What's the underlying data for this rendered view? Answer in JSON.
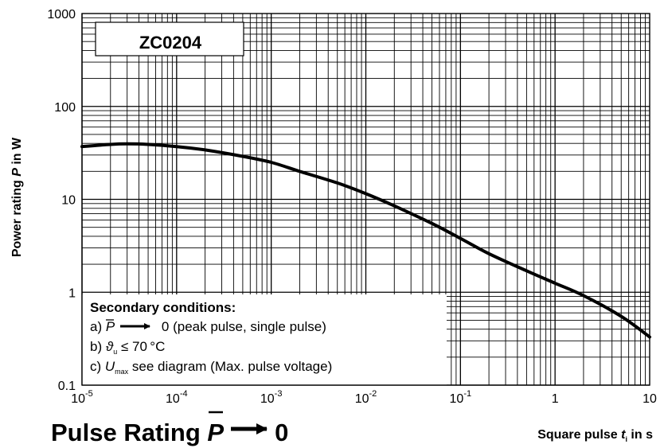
{
  "chart_data": {
    "type": "line",
    "title": "Pulse Rating P̅ → 0",
    "title_parts": {
      "lead": "Pulse Rating ",
      "symbol": "P",
      "tail": "0"
    },
    "label_box": "ZC0204",
    "ylabel": "Power rating P in W",
    "ylabel_parts": {
      "lead": "Power rating ",
      "symbol": "P",
      "tail": " in W"
    },
    "xlabel": "Square pulse tᵢ in s",
    "xlabel_parts": {
      "lead": "Square pulse ",
      "symbol": "t",
      "sub": "i",
      "tail": " in s"
    },
    "x_scale": "log",
    "y_scale": "log",
    "xlim": [
      1e-05,
      10
    ],
    "ylim": [
      0.1,
      1000
    ],
    "x_ticks": [
      {
        "value": 1e-05,
        "base": "10",
        "exp": "-5"
      },
      {
        "value": 0.0001,
        "base": "10",
        "exp": "-4"
      },
      {
        "value": 0.001,
        "base": "10",
        "exp": "-3"
      },
      {
        "value": 0.01,
        "base": "10",
        "exp": "-2"
      },
      {
        "value": 0.1,
        "base": "10",
        "exp": "-1"
      },
      {
        "value": 1,
        "base": "1",
        "exp": ""
      },
      {
        "value": 10,
        "base": "10",
        "exp": ""
      }
    ],
    "y_ticks": [
      {
        "value": 0.1,
        "label": "0.1"
      },
      {
        "value": 1,
        "label": "1"
      },
      {
        "value": 10,
        "label": "10"
      },
      {
        "value": 100,
        "label": "100"
      },
      {
        "value": 1000,
        "label": "1000"
      }
    ],
    "grid": true,
    "series": [
      {
        "color": "#000000",
        "x": [
          1e-05,
          2e-05,
          3e-05,
          5e-05,
          0.0001,
          0.0002,
          0.0005,
          0.001,
          0.002,
          0.005,
          0.01,
          0.02,
          0.05,
          0.1,
          0.2,
          0.5,
          1,
          2,
          5,
          10
        ],
        "y": [
          37,
          39,
          39.5,
          39,
          37,
          34,
          29,
          25,
          20,
          15,
          11.5,
          8.5,
          5.5,
          3.8,
          2.6,
          1.7,
          1.25,
          0.92,
          0.55,
          0.33
        ]
      }
    ],
    "annotation": {
      "heading": "Secondary conditions:",
      "line_a": {
        "prefix": "a) ",
        "symbol": "P",
        "tail": " 0 (peak pulse, single pulse)"
      },
      "line_b": {
        "prefix": "b) ",
        "symbol": "ϑ",
        "sub": "u",
        "tail": " ≤ 70 °C"
      },
      "line_c": {
        "prefix": "c) ",
        "symbol": "U",
        "sub": "max",
        "tail": " see diagram (Max. pulse voltage)"
      }
    }
  }
}
